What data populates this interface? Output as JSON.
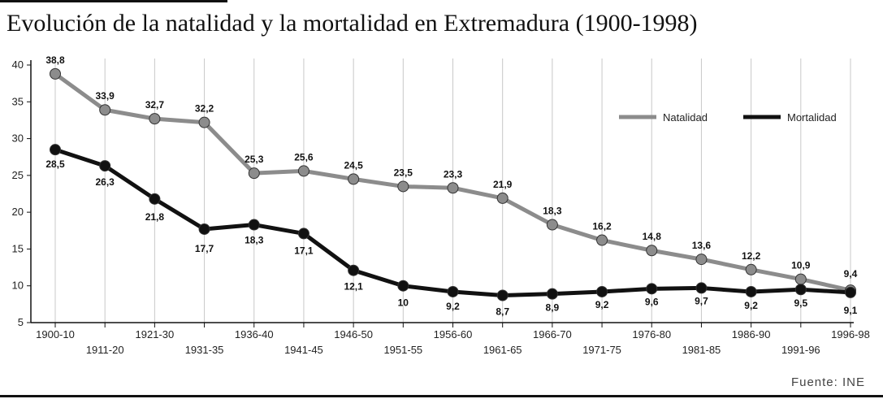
{
  "title": "Evolución de la natalidad y la mortalidad en Extremadura (1900-1998)",
  "source": "Fuente: INE",
  "chart_data": {
    "type": "line",
    "title": "Evolución de la natalidad y la mortalidad en Extremadura (1900-1998)",
    "categories": [
      "1900-10",
      "1911-20",
      "1921-30",
      "1931-35",
      "1936-40",
      "1941-45",
      "1946-50",
      "1951-55",
      "1956-60",
      "1961-65",
      "1966-70",
      "1971-75",
      "1976-80",
      "1981-85",
      "1986-90",
      "1991-96",
      "1996-98"
    ],
    "series": [
      {
        "name": "Natalidad",
        "color": "#8c8c8c",
        "values": [
          38.8,
          33.9,
          32.7,
          32.2,
          25.3,
          25.6,
          24.5,
          23.5,
          23.3,
          21.9,
          18.3,
          16.2,
          14.8,
          13.6,
          12.2,
          10.9,
          9.4
        ],
        "labels": [
          "38,8",
          "33,9",
          "32,7",
          "32,2",
          "25,3",
          "25,6",
          "24,5",
          "23,5",
          "23,3",
          "21,9",
          "18,3",
          "16,2",
          "14,8",
          "13,6",
          "12,2",
          "10,9",
          "9,4"
        ]
      },
      {
        "name": "Mortalidad",
        "color": "#111111",
        "values": [
          28.5,
          26.3,
          21.8,
          17.7,
          18.3,
          17.1,
          12.1,
          10,
          9.2,
          8.7,
          8.9,
          9.2,
          9.6,
          9.7,
          9.2,
          9.5,
          9.1
        ],
        "labels": [
          "28,5",
          "26,3",
          "21,8",
          "17,7",
          "18,3",
          "17,1",
          "12,1",
          "10",
          "9,2",
          "8,7",
          "8,9",
          "9,2",
          "9,6",
          "9,7",
          "9,2",
          "9,5",
          "9,1"
        ]
      }
    ],
    "yticks": [
      "5",
      "10",
      "15",
      "20",
      "25",
      "30",
      "35",
      "40"
    ],
    "ylim": [
      5,
      40
    ],
    "grid": "vertical",
    "legend": "top-right"
  }
}
